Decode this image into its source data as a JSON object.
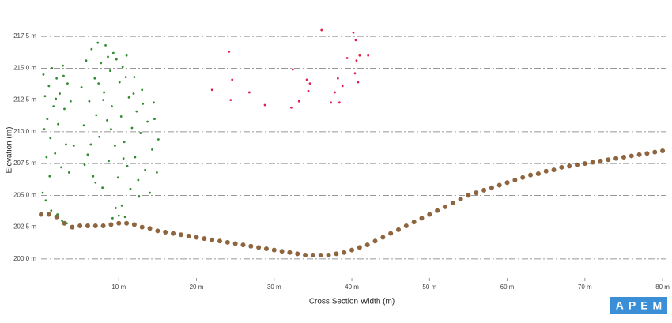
{
  "chart_data": {
    "type": "scatter",
    "x_label": "Cross Section Width (m)",
    "y_label": "Elevation (m)",
    "logo": "APEM",
    "xlim": [
      0,
      80.5
    ],
    "ylim": [
      198.5,
      218.5
    ],
    "xticks": [
      {
        "value": 10,
        "label": "10 m"
      },
      {
        "value": 20,
        "label": "20 m"
      },
      {
        "value": 30,
        "label": "30 m"
      },
      {
        "value": 40,
        "label": "40 m"
      },
      {
        "value": 50,
        "label": "50 m"
      },
      {
        "value": 60,
        "label": "60 m"
      },
      {
        "value": 70,
        "label": "70 m"
      },
      {
        "value": 80,
        "label": "80 m"
      }
    ],
    "yticks": [
      {
        "value": 200,
        "label": "200.0 m"
      },
      {
        "value": 202.5,
        "label": "202.5 m"
      },
      {
        "value": 205,
        "label": "205.0 m"
      },
      {
        "value": 207.5,
        "label": "207.5 m"
      },
      {
        "value": 210,
        "label": "210.0 m"
      },
      {
        "value": 212.5,
        "label": "212.5 m"
      },
      {
        "value": 215,
        "label": "215.0 m"
      },
      {
        "value": 217.5,
        "label": "217.5 m"
      }
    ],
    "grid": true,
    "series": [
      {
        "color": "#7a4a1c",
        "x": [
          0,
          1,
          2,
          3,
          4,
          5,
          6,
          7,
          8,
          9,
          10,
          11,
          12,
          13,
          14,
          15,
          16,
          17,
          18,
          19,
          20,
          21,
          22,
          23,
          24,
          25,
          26,
          27,
          28,
          29,
          30,
          31,
          32,
          33,
          34,
          35,
          36,
          37,
          38,
          39,
          40,
          41,
          42,
          43,
          44,
          45,
          46,
          47,
          48,
          49,
          50,
          51,
          52,
          53,
          54,
          55,
          56,
          57,
          58,
          59,
          60,
          61,
          62,
          63,
          64,
          65,
          66,
          67,
          68,
          69,
          70,
          71,
          72,
          73,
          74,
          75,
          76,
          77,
          78,
          79,
          80
        ],
        "values": [
          203.5,
          203.5,
          203.3,
          202.8,
          202.5,
          202.6,
          202.6,
          202.6,
          202.6,
          202.7,
          202.8,
          202.8,
          202.7,
          202.5,
          202.4,
          202.2,
          202.1,
          202.0,
          201.9,
          201.8,
          201.7,
          201.6,
          201.5,
          201.4,
          201.3,
          201.2,
          201.1,
          201.0,
          200.9,
          200.8,
          200.7,
          200.6,
          200.5,
          200.4,
          200.3,
          200.3,
          200.3,
          200.3,
          200.4,
          200.5,
          200.7,
          200.9,
          201.1,
          201.4,
          201.7,
          202.0,
          202.3,
          202.6,
          202.9,
          203.2,
          203.5,
          203.8,
          204.1,
          204.4,
          204.7,
          205.0,
          205.2,
          205.4,
          205.6,
          205.8,
          206.0,
          206.2,
          206.4,
          206.6,
          206.7,
          206.9,
          207.0,
          207.2,
          207.3,
          207.4,
          207.5,
          207.6,
          207.7,
          207.8,
          207.9,
          208.0,
          208.1,
          208.2,
          208.3,
          208.4,
          208.5
        ]
      },
      {
        "color": "#2e8b2e",
        "x": [
          0.3,
          0.5,
          0.8,
          1.0,
          1.2,
          1.4,
          1.6,
          1.8,
          2.0,
          2.2,
          2.4,
          2.6,
          2.8,
          3.0,
          3.2,
          3.4,
          3.6,
          0.4,
          0.7,
          1.1,
          0.2,
          0.6,
          1.3,
          2.1,
          2.7,
          3.3,
          1.9,
          2.9,
          5.2,
          5.5,
          5.8,
          6.0,
          6.2,
          6.5,
          6.7,
          6.9,
          7.1,
          7.3,
          7.5,
          7.7,
          7.9,
          8.1,
          8.3,
          8.5,
          8.7,
          8.9,
          9.1,
          9.3,
          9.5,
          9.7,
          9.9,
          10.1,
          10.3,
          10.5,
          10.7,
          10.9,
          11.1,
          11.3,
          11.5,
          11.7,
          11.9,
          12.1,
          12.3,
          12.5,
          12.8,
          13.1,
          13.4,
          13.7,
          14.0,
          14.3,
          14.6,
          14.9,
          15.1,
          9.6,
          10.0,
          10.4,
          9.2,
          10.8,
          8.0,
          6.4,
          7.4,
          8.6,
          11.0,
          12.0,
          13.0,
          5.6,
          7.0,
          9.0,
          10.6,
          12.6,
          14.5,
          4.2,
          3.8
        ],
        "values": [
          214.5,
          212.8,
          211.0,
          213.6,
          209.5,
          215.0,
          212.0,
          208.3,
          214.2,
          210.6,
          213.0,
          207.2,
          215.2,
          211.8,
          209.0,
          213.8,
          206.8,
          210.2,
          208.0,
          206.5,
          205.2,
          204.6,
          203.8,
          203.5,
          203.0,
          202.8,
          212.6,
          214.4,
          213.5,
          210.5,
          215.6,
          208.2,
          212.4,
          216.5,
          206.5,
          214.2,
          211.3,
          217.0,
          209.6,
          215.4,
          205.6,
          213.1,
          216.8,
          210.9,
          207.7,
          214.8,
          212.0,
          216.2,
          208.9,
          215.7,
          206.4,
          213.9,
          211.2,
          215.1,
          209.2,
          214.3,
          207.3,
          212.7,
          205.5,
          210.3,
          213.0,
          208.0,
          211.6,
          206.2,
          209.9,
          212.2,
          207.0,
          210.8,
          205.2,
          208.6,
          211.0,
          206.8,
          209.4,
          204.0,
          203.4,
          204.2,
          203.2,
          203.3,
          212.5,
          209.0,
          213.8,
          215.9,
          216.0,
          214.3,
          213.3,
          207.4,
          206.0,
          210.2,
          207.9,
          204.9,
          212.3,
          208.9,
          212.4
        ]
      },
      {
        "color": "#e0204a",
        "x": [
          22,
          24.2,
          24.6,
          24.4,
          26.8,
          28.8,
          32.2,
          32.4,
          33.2,
          34.4,
          34.2,
          34.6,
          36.1,
          37.3,
          37.8,
          38.2,
          38.4,
          38.8,
          39.4,
          40.2,
          40.6,
          40.4,
          41.0,
          40.8,
          42.1,
          40.5
        ],
        "values": [
          213.3,
          216.3,
          214.1,
          212.5,
          213.1,
          212.1,
          211.9,
          214.9,
          212.4,
          213.2,
          214.1,
          213.8,
          218.0,
          212.3,
          213.1,
          214.2,
          212.3,
          213.6,
          215.8,
          217.8,
          215.6,
          214.6,
          216.0,
          213.9,
          216.0,
          217.2
        ]
      }
    ]
  }
}
